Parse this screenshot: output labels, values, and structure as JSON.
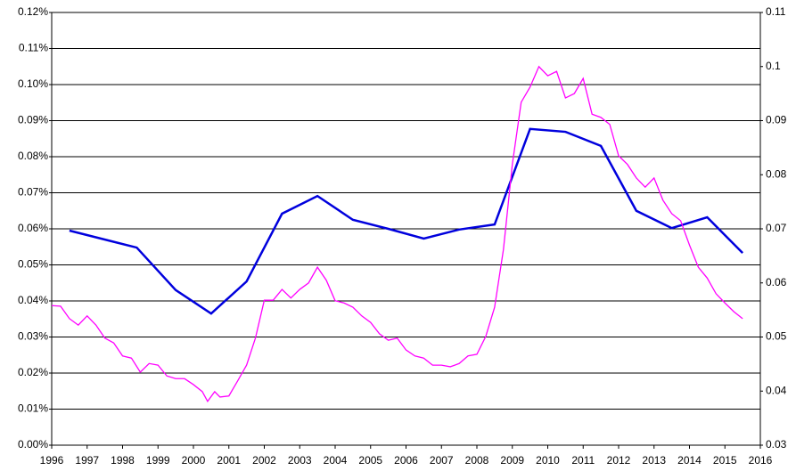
{
  "chart_data": {
    "type": "line",
    "xlim": [
      1996,
      2016
    ],
    "xticks": [
      1996,
      1997,
      1998,
      1999,
      2000,
      2001,
      2002,
      2003,
      2004,
      2005,
      2006,
      2007,
      2008,
      2009,
      2010,
      2011,
      2012,
      2013,
      2014,
      2015,
      2016
    ],
    "ylim": [
      0,
      0.12
    ],
    "yticks": [
      {
        "value": 0,
        "label": "0.00%"
      },
      {
        "value": 0.01,
        "label": "0.01%"
      },
      {
        "value": 0.02,
        "label": "0.02%"
      },
      {
        "value": 0.03,
        "label": "0.03%"
      },
      {
        "value": 0.04,
        "label": "0.04%"
      },
      {
        "value": 0.05,
        "label": "0.05%"
      },
      {
        "value": 0.06,
        "label": "0.06%"
      },
      {
        "value": 0.07,
        "label": "0.07%"
      },
      {
        "value": 0.08,
        "label": "0.08%"
      },
      {
        "value": 0.09,
        "label": "0.09%"
      },
      {
        "value": 0.1,
        "label": "0.10%"
      },
      {
        "value": 0.11,
        "label": "0.11%"
      },
      {
        "value": 0.12,
        "label": "0.12%"
      }
    ],
    "y2lim": [
      0.03,
      0.11
    ],
    "y2ticks": [
      0.03,
      0.04,
      0.05,
      0.06,
      0.07,
      0.08,
      0.09,
      0.1,
      0.11
    ],
    "grid": true,
    "series": [
      {
        "color": "#0000dd",
        "axis": "y",
        "x": [
          1996.5,
          1998.4,
          1999.5,
          2000.5,
          2001.5,
          2002.5,
          2003.5,
          2004.5,
          2005.5,
          2006.5,
          2007.5,
          2008.5,
          2009.5,
          2010.5,
          2011.5,
          2012.5,
          2013.5,
          2014.5,
          2015.5
        ],
        "values": [
          0.0595,
          0.0548,
          0.043,
          0.0365,
          0.0454,
          0.0642,
          0.0691,
          0.0625,
          0.06,
          0.0573,
          0.0598,
          0.0612,
          0.0877,
          0.0869,
          0.083,
          0.065,
          0.0602,
          0.0632,
          0.0533
        ]
      },
      {
        "color": "#ff00ff",
        "axis": "y2",
        "x": [
          1996.0,
          1996.25,
          1996.5,
          1996.75,
          1997.0,
          1997.25,
          1997.5,
          1997.75,
          1998.0,
          1998.25,
          1998.5,
          1998.75,
          1999.0,
          1999.25,
          1999.5,
          1999.75,
          2000.0,
          2000.25,
          2000.4,
          2000.6,
          2000.75,
          2001.0,
          2001.25,
          2001.5,
          2001.75,
          2002.0,
          2002.25,
          2002.5,
          2002.75,
          2003.0,
          2003.25,
          2003.5,
          2003.75,
          2004.0,
          2004.25,
          2004.5,
          2004.75,
          2005.0,
          2005.25,
          2005.5,
          2005.75,
          2006.0,
          2006.25,
          2006.5,
          2006.75,
          2007.0,
          2007.25,
          2007.5,
          2007.75,
          2008.0,
          2008.25,
          2008.5,
          2008.75,
          2009.0,
          2009.25,
          2009.5,
          2009.75,
          2010.0,
          2010.25,
          2010.5,
          2010.75,
          2011.0,
          2011.25,
          2011.5,
          2011.75,
          2012.0,
          2012.25,
          2012.5,
          2012.75,
          2013.0,
          2013.25,
          2013.5,
          2013.75,
          2014.0,
          2014.25,
          2014.5,
          2014.75,
          2015.0,
          2015.25,
          2015.5
        ],
        "values": [
          0.0558,
          0.0557,
          0.0534,
          0.0522,
          0.0539,
          0.0522,
          0.0498,
          0.0489,
          0.0465,
          0.0461,
          0.0435,
          0.0451,
          0.0448,
          0.0428,
          0.0423,
          0.0423,
          0.0412,
          0.0399,
          0.0381,
          0.0399,
          0.0389,
          0.0391,
          0.0419,
          0.0448,
          0.0498,
          0.0568,
          0.0568,
          0.0588,
          0.0572,
          0.0588,
          0.06,
          0.0629,
          0.0605,
          0.0567,
          0.0563,
          0.0555,
          0.0539,
          0.0527,
          0.0506,
          0.0494,
          0.0498,
          0.0476,
          0.0465,
          0.0461,
          0.0448,
          0.0448,
          0.0445,
          0.0451,
          0.0465,
          0.0468,
          0.0501,
          0.0555,
          0.0662,
          0.0819,
          0.0934,
          0.0962,
          0.1,
          0.0983,
          0.0991,
          0.0942,
          0.095,
          0.0978,
          0.0912,
          0.0906,
          0.0893,
          0.0835,
          0.0819,
          0.0794,
          0.0777,
          0.0794,
          0.0753,
          0.0728,
          0.0715,
          0.067,
          0.0629,
          0.0609,
          0.058,
          0.0563,
          0.0547,
          0.0534
        ]
      }
    ]
  }
}
